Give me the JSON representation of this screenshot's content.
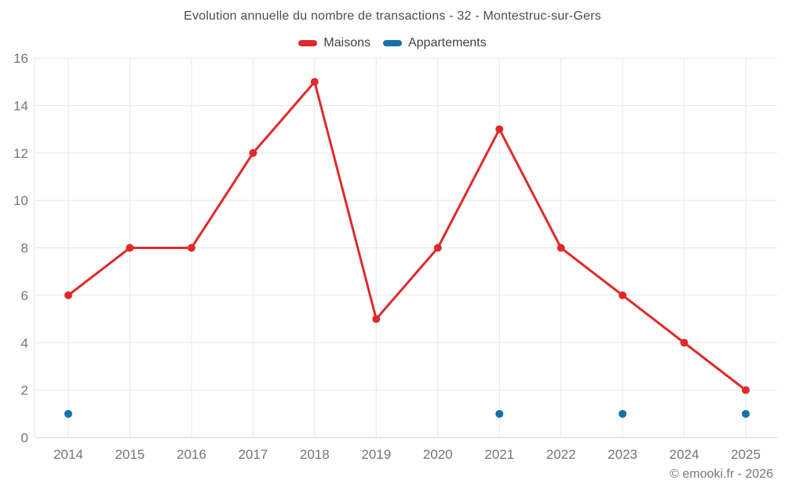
{
  "header": {
    "title": "Evolution annuelle du nombre de transactions - 32 - Montestruc-sur-Gers"
  },
  "footer": {
    "copyright": "© emooki.fr - 2026"
  },
  "chart_data": {
    "type": "line",
    "title": "Evolution annuelle du nombre de transactions - 32 - Montestruc-sur-Gers",
    "categories": [
      "2014",
      "2015",
      "2016",
      "2017",
      "2018",
      "2019",
      "2020",
      "2021",
      "2022",
      "2023",
      "2024",
      "2025"
    ],
    "series": [
      {
        "name": "Maisons",
        "color": "#e02a2a",
        "style": "line-markers",
        "values": [
          6,
          8,
          8,
          12,
          15,
          5,
          8,
          13,
          8,
          6,
          4,
          2
        ]
      },
      {
        "name": "Appartements",
        "color": "#1572a8",
        "style": "markers",
        "values": [
          1,
          null,
          null,
          null,
          null,
          null,
          null,
          1,
          null,
          1,
          null,
          1
        ]
      }
    ],
    "ylim": [
      0,
      16
    ],
    "yticks": [
      0,
      2,
      4,
      6,
      8,
      10,
      12,
      14,
      16
    ],
    "grid": true,
    "grid_color": "#e7e7e7",
    "axis_line_color": "#d2d2d2",
    "tick_label_color": "#757575",
    "legend_position": "top",
    "xlabel": "",
    "ylabel": ""
  }
}
